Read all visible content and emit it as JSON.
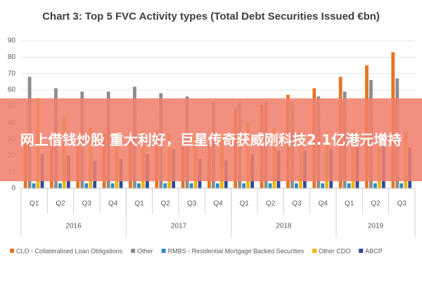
{
  "chart_data": {
    "type": "bar",
    "title": "Chart 3: Top 5 FVC Activity types (Total Debt Securities Issued €bn)",
    "groups": [
      {
        "label": "2016",
        "categories": [
          "Q1",
          "Q2",
          "Q3",
          "Q4"
        ]
      },
      {
        "label": "2017",
        "categories": [
          "Q1",
          "Q2",
          "Q3",
          "Q4"
        ]
      },
      {
        "label": "2018",
        "categories": [
          "Q1",
          "Q2",
          "Q3",
          "Q4"
        ]
      },
      {
        "label": "2019",
        "categories": [
          "Q1",
          "Q2",
          "Q3"
        ]
      }
    ],
    "series": [
      {
        "name": "CLO - Collateralised Loan Obligations",
        "color": "#e8731f",
        "values": [
          30,
          31,
          32,
          34,
          34,
          35,
          31,
          27,
          49,
          51,
          57,
          61,
          68,
          75,
          83
        ]
      },
      {
        "name": "Other",
        "color": "#8c8c8c",
        "values": [
          68,
          61,
          59,
          59,
          62,
          58,
          56,
          53,
          52,
          53,
          53,
          56,
          59,
          66,
          67
        ]
      },
      {
        "name": "RMBS - Residential Mortgage Backed Securities",
        "color": "#2e8bc0",
        "values": [
          3,
          3,
          3,
          3,
          3,
          3,
          3,
          3,
          3,
          3,
          3,
          3,
          3,
          3,
          3
        ]
      },
      {
        "name": "Other CDO",
        "color": "#f2b400",
        "values": [
          55,
          44,
          37,
          33,
          35,
          33,
          33,
          33,
          40,
          37,
          35,
          35,
          36,
          33,
          35
        ]
      },
      {
        "name": "ABCP",
        "color": "#2f4a9a",
        "values": [
          21,
          20,
          17,
          18,
          21,
          24,
          18,
          17,
          21,
          23,
          23,
          24,
          25,
          26,
          25
        ]
      }
    ],
    "ylim": [
      0,
      90
    ],
    "yticks": [
      0,
      10,
      20,
      30,
      40,
      50,
      60,
      70,
      80,
      90
    ],
    "grid": true,
    "legend": "bottom"
  },
  "banner": {
    "text": "网上借钱炒股  重大利好，巨星传奇获威刚科技2.1亿港元增持"
  }
}
